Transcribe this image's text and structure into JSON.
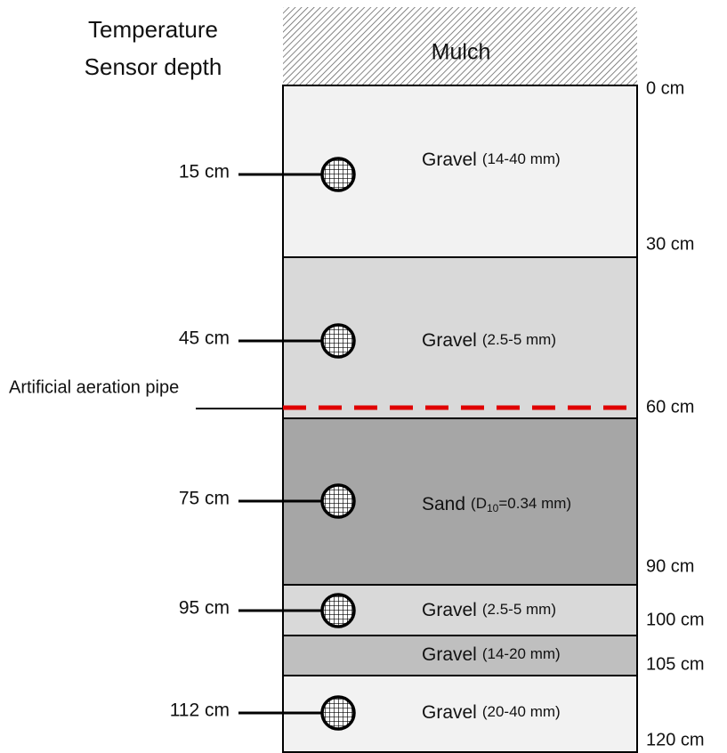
{
  "header": {
    "title_lines": [
      "Temperature",
      "Sensor depth"
    ]
  },
  "mulch": "Mulch",
  "layers": [
    {
      "name": "Gravel",
      "size": "(14-40 mm)"
    },
    {
      "name": "Gravel",
      "size": "(2.5-5 mm)"
    },
    {
      "name": "Sand",
      "size": "(D",
      "sub": "10",
      "size_rest": "=0.34 mm)"
    },
    {
      "name": "Gravel",
      "size": "(2.5-5 mm)"
    },
    {
      "name": "Gravel",
      "size": "(14-20 mm)"
    },
    {
      "name": "Gravel",
      "size": "(20-40 mm)"
    }
  ],
  "depths": [
    "0 cm",
    "30 cm",
    "60 cm",
    "90 cm",
    "100 cm",
    "105 cm",
    "120 cm"
  ],
  "sensors": [
    "15 cm",
    "45 cm",
    "75 cm",
    "95 cm",
    "112 cm"
  ],
  "pipe": "Artificial aeration pipe"
}
